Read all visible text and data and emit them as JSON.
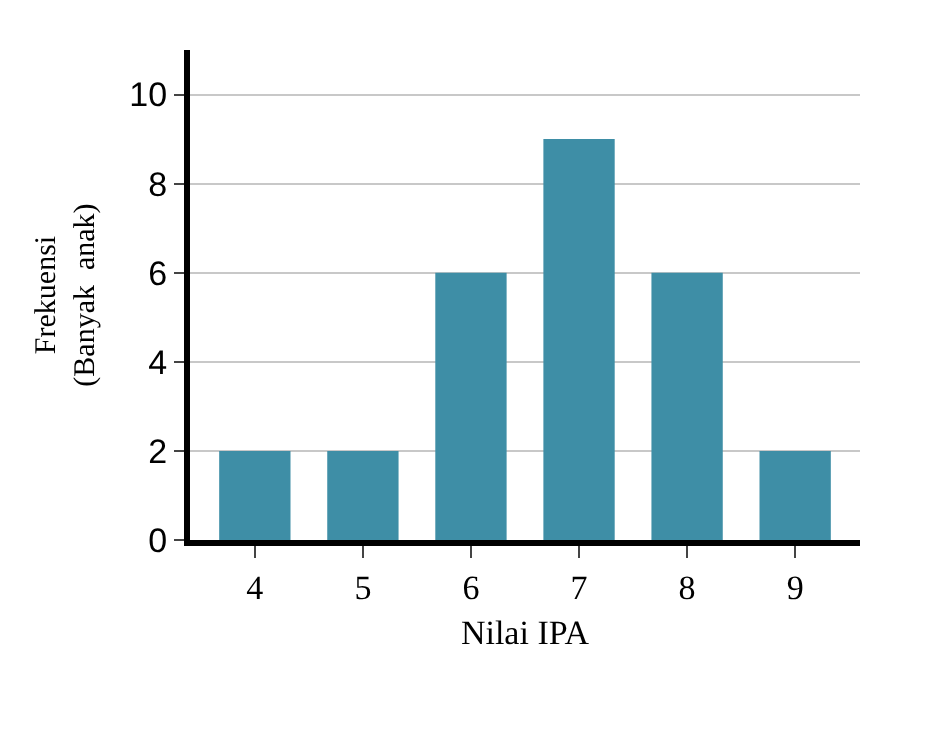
{
  "chart_data": {
    "type": "bar",
    "xlabel": "Nilai IPA",
    "ylabel": "Frekuensi\n(Banyak  anak)",
    "categories": [
      "4",
      "5",
      "6",
      "7",
      "8",
      "9"
    ],
    "values": [
      2,
      2,
      6,
      9,
      6,
      2
    ],
    "color": "#3e8ea6",
    "ylim": [
      0,
      11
    ],
    "yticks": [
      0,
      2,
      4,
      6,
      8,
      10
    ],
    "grid": "y"
  }
}
